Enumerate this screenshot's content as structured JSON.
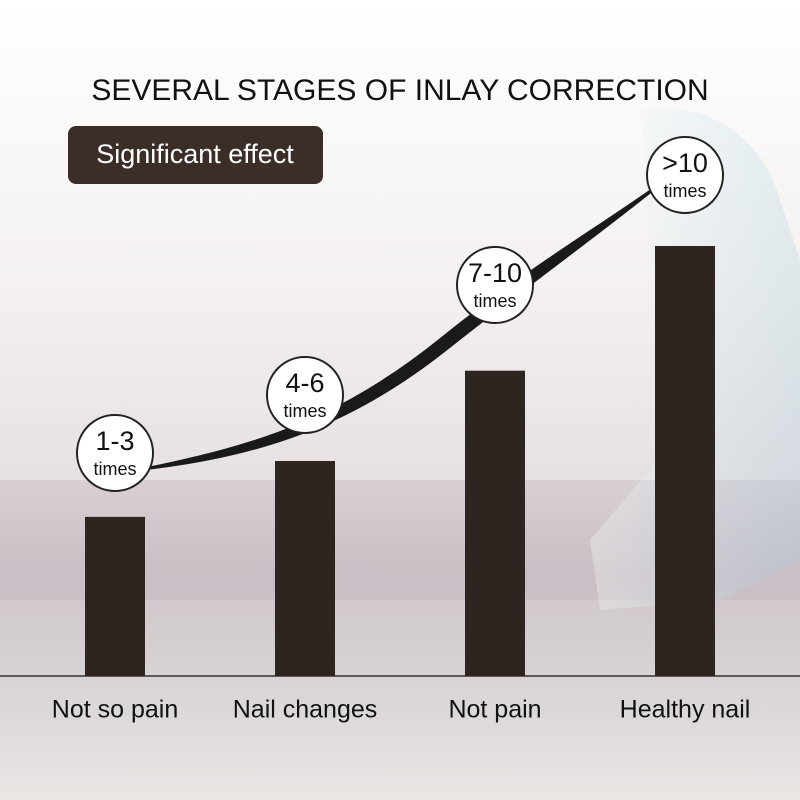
{
  "chart_data": {
    "type": "bar",
    "title": "SEVERAL STAGES OF INLAY CORRECTION",
    "badge": "Significant effect",
    "categories": [
      "Not so pain",
      "Nail changes",
      "Not pain",
      "Healthy nail"
    ],
    "values": [
      37,
      50,
      71,
      100
    ],
    "color": "#2e2520",
    "ylim": [
      0,
      100
    ],
    "bubbles": [
      {
        "range": "1-3",
        "unit": "times"
      },
      {
        "range": "4-6",
        "unit": "times"
      },
      {
        "range": "7-10",
        "unit": "times"
      },
      {
        "range": ">10",
        "unit": "times"
      }
    ]
  }
}
